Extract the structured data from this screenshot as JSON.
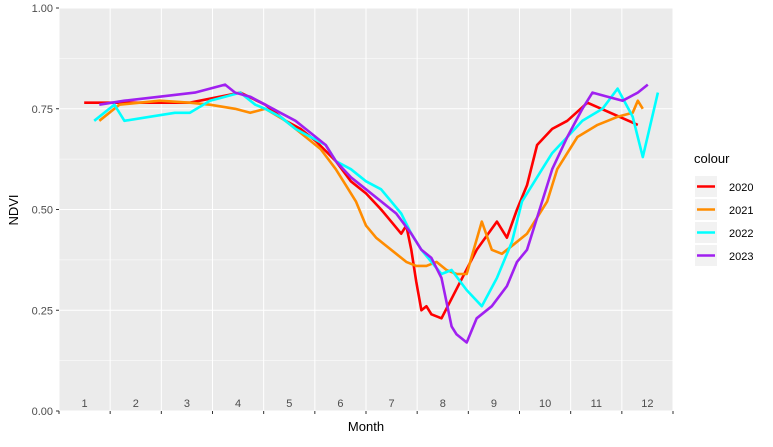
{
  "chart_data": {
    "type": "line",
    "title": "",
    "xlabel": "Month",
    "ylabel": "NDVI",
    "xlim": [
      0.5,
      12.7
    ],
    "ylim": [
      0,
      1
    ],
    "x_tick_labels": [
      "1",
      "2",
      "3",
      "4",
      "5",
      "6",
      "7",
      "8",
      "9",
      "10",
      "11",
      "12"
    ],
    "y_ticks": [
      0,
      0.25,
      0.5,
      0.75,
      1
    ],
    "y_tick_labels": [
      "0.00",
      "0.25",
      "0.50",
      "0.75",
      "1.00"
    ],
    "grid": true,
    "legend_title": "colour",
    "legend_position": "right",
    "series": [
      {
        "name": "2020",
        "color": "#ff0000",
        "x": [
          1.0,
          1.3,
          3.1,
          4.1,
          4.6,
          4.8,
          5.0,
          5.3,
          5.6,
          6.0,
          6.3,
          6.6,
          6.9,
          7.1,
          7.3,
          7.4,
          7.5,
          7.6,
          7.7,
          7.8,
          7.9,
          8.1,
          8.8,
          9.2,
          9.4,
          9.6,
          9.8,
          10.0,
          10.3,
          10.6,
          11.0,
          12.0
        ],
        "y": [
          0.765,
          0.765,
          0.765,
          0.79,
          0.76,
          0.74,
          0.72,
          0.7,
          0.67,
          0.62,
          0.57,
          0.54,
          0.5,
          0.47,
          0.44,
          0.46,
          0.4,
          0.32,
          0.25,
          0.26,
          0.24,
          0.23,
          0.4,
          0.47,
          0.43,
          0.5,
          0.56,
          0.66,
          0.7,
          0.72,
          0.765,
          0.71
        ]
      },
      {
        "name": "2021",
        "color": "#ff8c00",
        "x": [
          1.3,
          1.7,
          2.5,
          3.1,
          3.5,
          4.0,
          4.3,
          4.6,
          5.0,
          5.3,
          5.7,
          6.0,
          6.2,
          6.4,
          6.6,
          6.8,
          7.0,
          7.2,
          7.4,
          7.6,
          7.8,
          8.0,
          8.2,
          8.4,
          8.6,
          8.9,
          9.1,
          9.3,
          9.5,
          9.8,
          10.0,
          10.2,
          10.4,
          10.8,
          11.2,
          11.6,
          11.9,
          12.0,
          12.1
        ],
        "y": [
          0.72,
          0.76,
          0.77,
          0.765,
          0.76,
          0.75,
          0.74,
          0.75,
          0.72,
          0.69,
          0.65,
          0.6,
          0.56,
          0.52,
          0.46,
          0.43,
          0.41,
          0.39,
          0.37,
          0.36,
          0.36,
          0.37,
          0.35,
          0.34,
          0.34,
          0.47,
          0.4,
          0.39,
          0.41,
          0.44,
          0.48,
          0.52,
          0.6,
          0.68,
          0.71,
          0.73,
          0.74,
          0.77,
          0.75
        ]
      },
      {
        "name": "2022",
        "color": "#00ffff",
        "x": [
          1.2,
          1.6,
          1.8,
          2.3,
          2.8,
          3.1,
          3.5,
          3.8,
          4.1,
          4.4,
          4.6,
          4.9,
          5.2,
          5.5,
          5.8,
          6.0,
          6.3,
          6.6,
          6.9,
          7.1,
          7.3,
          7.5,
          7.7,
          7.9,
          8.1,
          8.3,
          8.6,
          8.9,
          9.2,
          9.5,
          9.7,
          9.9,
          10.1,
          10.3,
          10.6,
          10.9,
          11.3,
          11.6,
          11.9,
          12.1,
          12.4
        ],
        "y": [
          0.72,
          0.76,
          0.72,
          0.73,
          0.74,
          0.74,
          0.77,
          0.78,
          0.79,
          0.76,
          0.75,
          0.73,
          0.7,
          0.68,
          0.66,
          0.62,
          0.6,
          0.57,
          0.55,
          0.52,
          0.49,
          0.44,
          0.4,
          0.37,
          0.34,
          0.35,
          0.3,
          0.26,
          0.33,
          0.42,
          0.52,
          0.56,
          0.6,
          0.64,
          0.68,
          0.72,
          0.75,
          0.8,
          0.73,
          0.63,
          0.79
        ]
      },
      {
        "name": "2023",
        "color": "#a020f0",
        "x": [
          1.3,
          1.8,
          2.5,
          3.2,
          3.8,
          4.0,
          4.3,
          4.6,
          4.9,
          5.2,
          5.5,
          5.8,
          6.0,
          6.3,
          6.6,
          6.9,
          7.2,
          7.5,
          7.7,
          7.9,
          8.1,
          8.3,
          8.4,
          8.6,
          8.8,
          9.1,
          9.4,
          9.6,
          9.8,
          10.0,
          10.3,
          10.6,
          10.9,
          11.1,
          11.4,
          11.7,
          12.0,
          12.2
        ],
        "y": [
          0.76,
          0.77,
          0.78,
          0.79,
          0.81,
          0.79,
          0.78,
          0.76,
          0.74,
          0.72,
          0.69,
          0.66,
          0.62,
          0.58,
          0.55,
          0.52,
          0.49,
          0.44,
          0.4,
          0.38,
          0.33,
          0.21,
          0.19,
          0.17,
          0.23,
          0.26,
          0.31,
          0.37,
          0.4,
          0.48,
          0.6,
          0.68,
          0.75,
          0.79,
          0.78,
          0.77,
          0.79,
          0.81
        ]
      }
    ]
  }
}
